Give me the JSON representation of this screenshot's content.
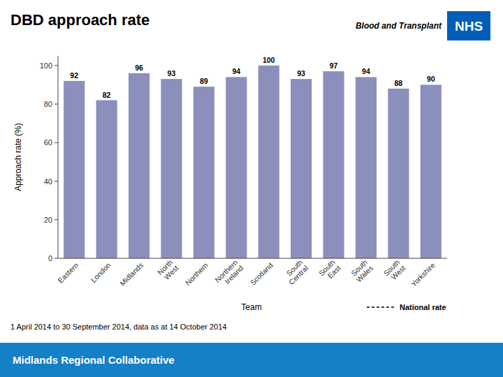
{
  "chart_data": {
    "type": "bar",
    "title": "DBD approach rate",
    "subtitle": "1 April 2014 to 30 September 2014, data as at 14 October 2014",
    "xlabel": "Team",
    "ylabel": "Approach rate (%)",
    "categories": [
      "Eastern",
      "London",
      "Midlands",
      "North\nWest",
      "Northern",
      "Northern\nIreland",
      "Scotland",
      "South\nCentral",
      "South\nEast",
      "South\nWales",
      "South\nWest",
      "Yorkshire"
    ],
    "values": [
      92,
      82,
      96,
      93,
      89,
      94,
      100,
      93,
      97,
      94,
      88,
      90
    ],
    "color": "#8B8FBB",
    "ylim": [
      0,
      105
    ],
    "yticks": [
      0,
      20,
      40,
      60,
      80,
      100
    ],
    "grid": false,
    "data_labels": true,
    "annotations": [
      {
        "text": "National rate"
      },
      {
        "text": "Midlands Regional Collaborative",
        "color": "#1580C8"
      },
      {
        "text": "NHS",
        "color": "#005EB8"
      },
      {
        "text": "Blood and Transplant"
      }
    ]
  }
}
